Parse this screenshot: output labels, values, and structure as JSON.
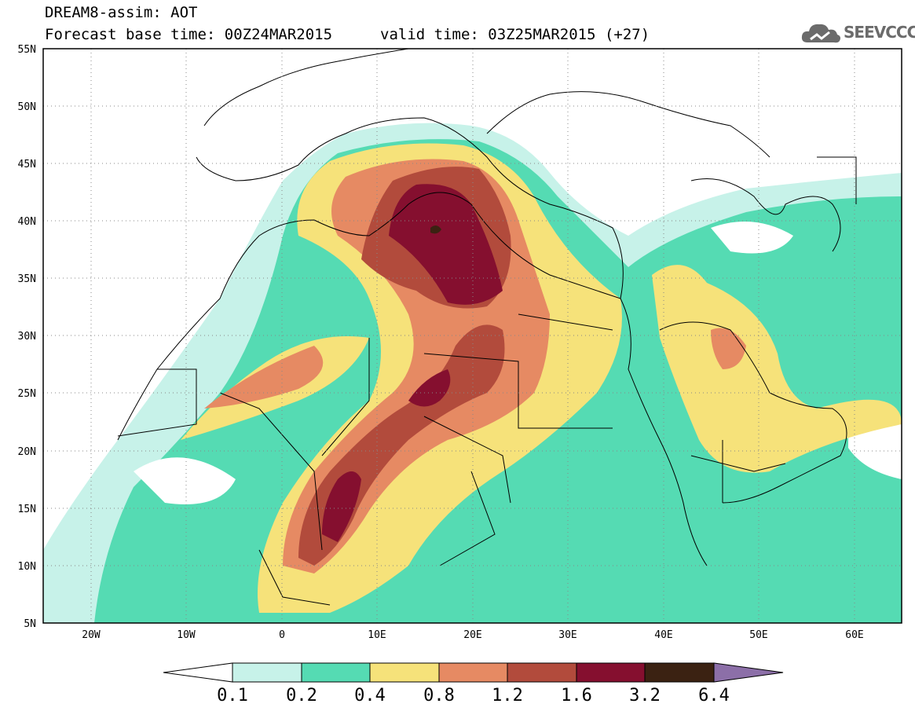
{
  "header": {
    "title": "DREAM8-assim: AOT",
    "base_time": "Forecast base time: 00Z24MAR2015",
    "valid_time": "valid time: 03Z25MAR2015 (+27)"
  },
  "logo": {
    "text": "SEEVCCC",
    "icon": "cloud-logo-icon"
  },
  "map": {
    "projection": "equirectangular",
    "lat_labels": [
      "55N",
      "50N",
      "45N",
      "40N",
      "35N",
      "30N",
      "25N",
      "20N",
      "15N",
      "10N",
      "5N"
    ],
    "lon_labels": [
      "20W",
      "10W",
      "0",
      "10E",
      "20E",
      "30E",
      "40E",
      "50E",
      "60E"
    ],
    "extent": {
      "lon": [
        -25,
        65
      ],
      "lat": [
        5,
        55
      ]
    },
    "grid": "dotted"
  },
  "colorbar": {
    "labels": [
      "0.1",
      "0.2",
      "0.4",
      "0.8",
      "1.2",
      "1.6",
      "3.2",
      "6.4"
    ],
    "colors": [
      "#c7f2e9",
      "#55dbb3",
      "#f6e27a",
      "#e68a63",
      "#b24b3c",
      "#850f2f",
      "#3b2212",
      "#8c6fa8"
    ],
    "under_color": "#ffffff"
  }
}
